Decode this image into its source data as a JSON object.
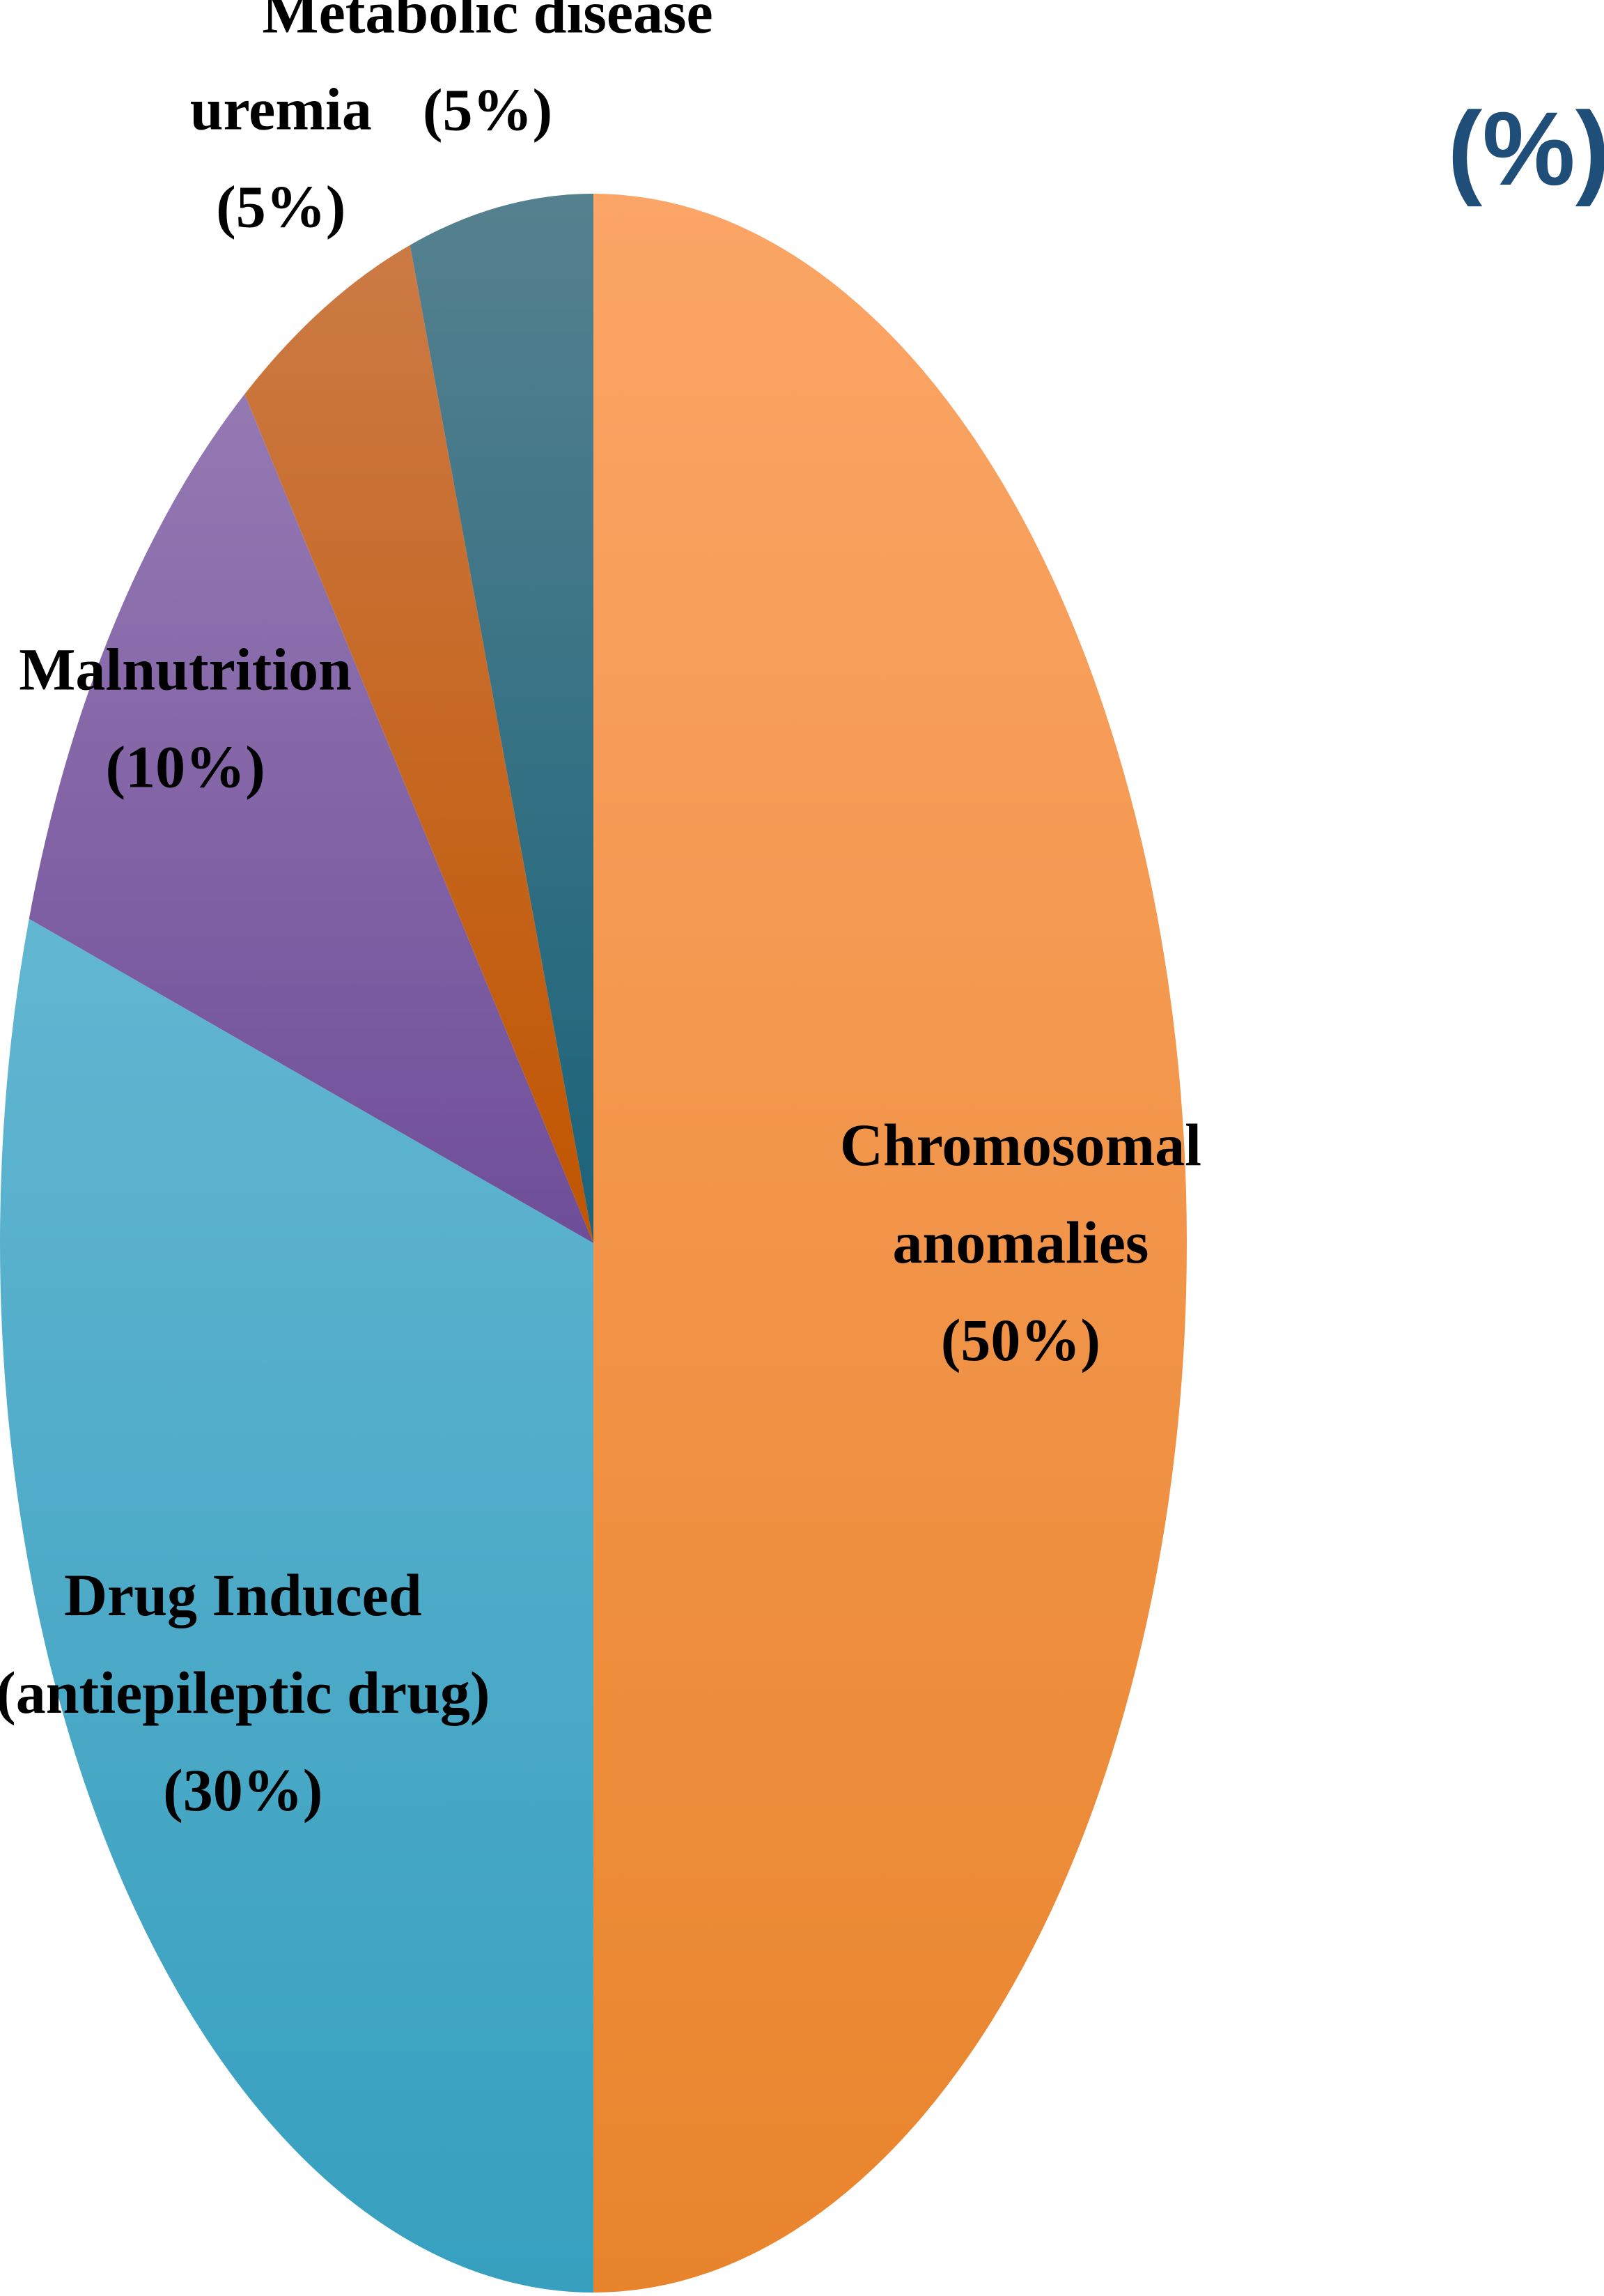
{
  "corner_text": "(%)",
  "chart_data": {
    "type": "pie",
    "title": "",
    "start_angle_deg": 0,
    "direction": "clockwise",
    "slices": [
      {
        "label_lines": [
          "Chromosomal",
          "anomalies",
          "(50%)"
        ],
        "value": 50,
        "color_light": "#fba566",
        "color_dark": "#e8842c"
      },
      {
        "label_lines": [
          "Drug Induced",
          "(antiepileptic drug)",
          "(30%)"
        ],
        "value": 30,
        "color_light": "#62b6d1",
        "color_dark": "#379fbf"
      },
      {
        "label_lines": [
          "Malnutrition",
          "(10%)"
        ],
        "value": 10,
        "color_light": "#9579b3",
        "color_dark": "#6f4e99"
      },
      {
        "label_lines": [
          "uremia",
          "(5%)"
        ],
        "value": 5,
        "color_light": "#cc7a45",
        "color_dark": "#c05500"
      },
      {
        "label_lines": [
          "Metabolic disease",
          "(5%)"
        ],
        "value": 5,
        "color_light": "#55818f",
        "color_dark": "#1b637a"
      }
    ]
  }
}
